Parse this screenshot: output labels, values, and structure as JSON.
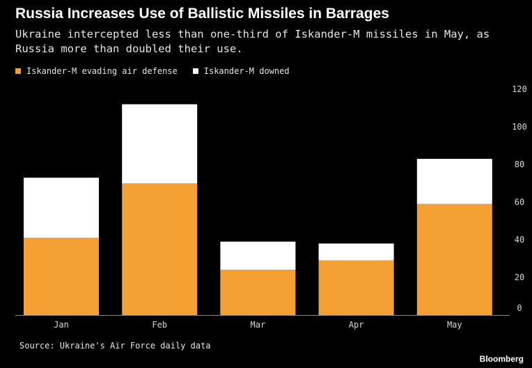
{
  "chart_data": {
    "type": "bar",
    "stacked": true,
    "title": "Russia Increases Use of Ballistic Missiles in Barrages",
    "subtitle": "Ukraine intercepted less than one-third of Iskander-M missiles in May, as Russia more than doubled their use.",
    "categories": [
      "Jan",
      "Feb",
      "Mar",
      "Apr",
      "May"
    ],
    "series": [
      {
        "name": "Iskander-M evading air defense",
        "color": "#f5a033",
        "values": [
          41,
          70,
          24,
          29,
          59
        ]
      },
      {
        "name": "Iskander-M downed",
        "color": "#ffffff",
        "values": [
          32,
          42,
          15,
          9,
          24
        ]
      }
    ],
    "ylim": [
      0,
      120
    ],
    "yticks": [
      0,
      20,
      40,
      60,
      80,
      100,
      120
    ],
    "yaxis_position": "right",
    "legend_position": "top-left",
    "grid": false
  },
  "source": "Source: Ukraine's Air Force daily data",
  "brand": "Bloomberg"
}
